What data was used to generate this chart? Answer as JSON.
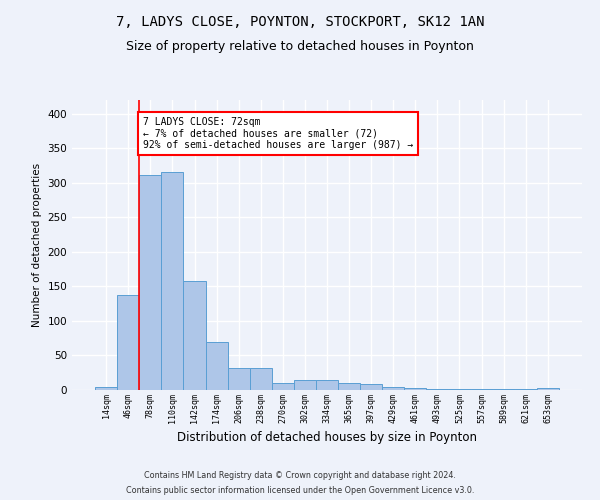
{
  "title1": "7, LADYS CLOSE, POYNTON, STOCKPORT, SK12 1AN",
  "title2": "Size of property relative to detached houses in Poynton",
  "xlabel": "Distribution of detached houses by size in Poynton",
  "ylabel": "Number of detached properties",
  "footnote1": "Contains HM Land Registry data © Crown copyright and database right 2024.",
  "footnote2": "Contains public sector information licensed under the Open Government Licence v3.0.",
  "annotation_line1": "7 LADYS CLOSE: 72sqm",
  "annotation_line2": "← 7% of detached houses are smaller (72)",
  "annotation_line3": "92% of semi-detached houses are larger (987) →",
  "bar_labels": [
    "14sqm",
    "46sqm",
    "78sqm",
    "110sqm",
    "142sqm",
    "174sqm",
    "206sqm",
    "238sqm",
    "270sqm",
    "302sqm",
    "334sqm",
    "365sqm",
    "397sqm",
    "429sqm",
    "461sqm",
    "493sqm",
    "525sqm",
    "557sqm",
    "589sqm",
    "621sqm",
    "653sqm"
  ],
  "bar_values": [
    5,
    137,
    312,
    316,
    158,
    70,
    32,
    32,
    10,
    14,
    14,
    10,
    8,
    5,
    3,
    2,
    1,
    2,
    1,
    1,
    3
  ],
  "bar_color": "#aec6e8",
  "bar_edge_color": "#5a9fd4",
  "ylim": [
    0,
    420
  ],
  "yticks": [
    0,
    50,
    100,
    150,
    200,
    250,
    300,
    350,
    400
  ],
  "bg_color": "#eef2fa",
  "grid_color": "#ffffff",
  "title_fontsize": 10,
  "subtitle_fontsize": 9,
  "red_line_x": 1.5
}
